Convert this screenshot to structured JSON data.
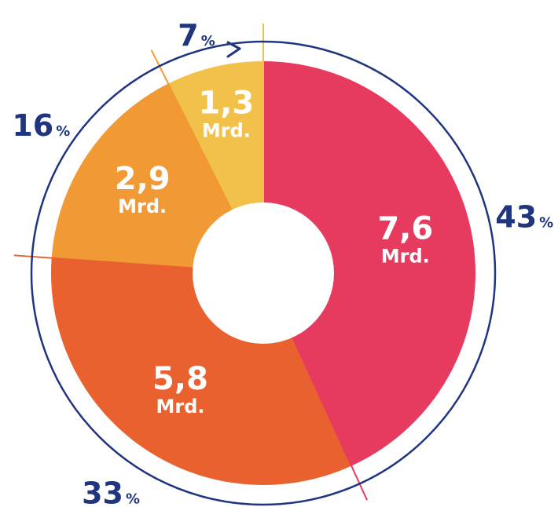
{
  "chart_data": {
    "type": "pie",
    "donut": true,
    "direction": "clockwise",
    "categories": [
      "",
      "",
      "",
      ""
    ],
    "values": [
      7.6,
      5.8,
      2.9,
      1.3
    ],
    "value_labels": [
      "7,6",
      "5,8",
      "2,9",
      "1,3"
    ],
    "unit": "Mrd.",
    "percent_labels": [
      "43",
      "33",
      "16",
      "7"
    ],
    "percent_sign": "%",
    "colors": [
      "#e63a5f",
      "#e9612f",
      "#f19a35",
      "#f2c14a"
    ],
    "outline_color": "#1f3580"
  }
}
